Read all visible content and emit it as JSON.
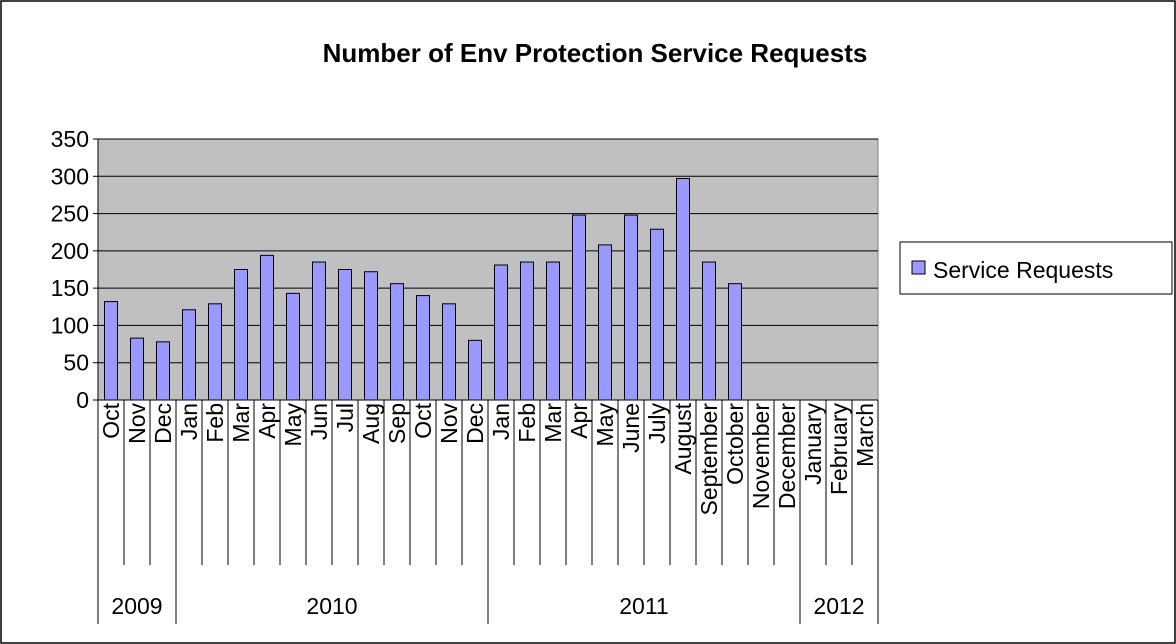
{
  "chart_data": {
    "type": "bar",
    "title": "Number of Env Protection Service Requests",
    "xlabel": "",
    "ylabel": "",
    "ylim": [
      0,
      350
    ],
    "yticks": [
      0,
      50,
      100,
      150,
      200,
      250,
      300,
      350
    ],
    "grid": true,
    "legend_position": "right",
    "categories": [
      "Oct",
      "Nov",
      "Dec",
      "Jan",
      "Feb",
      "Mar",
      "Apr",
      "May",
      "Jun",
      "Jul",
      "Aug",
      "Sep",
      "Oct",
      "Nov",
      "Dec",
      "Jan",
      "Feb",
      "Mar",
      "Apr",
      "May",
      "June",
      "July",
      "August",
      "September",
      "October",
      "November",
      "December",
      "January",
      "February",
      "March"
    ],
    "years": [
      {
        "label": "2009",
        "count": 3
      },
      {
        "label": "2010",
        "count": 12
      },
      {
        "label": "2011",
        "count": 12
      },
      {
        "label": "2012",
        "count": 3
      }
    ],
    "series": [
      {
        "name": "Service Requests",
        "color": "#9999ff",
        "values": [
          132,
          83,
          78,
          121,
          129,
          175,
          194,
          143,
          185,
          175,
          172,
          156,
          140,
          129,
          80,
          181,
          185,
          185,
          248,
          208,
          248,
          229,
          297,
          185,
          156,
          null,
          null,
          null,
          null,
          null
        ]
      }
    ],
    "plot_background": "#c0c0c0"
  }
}
